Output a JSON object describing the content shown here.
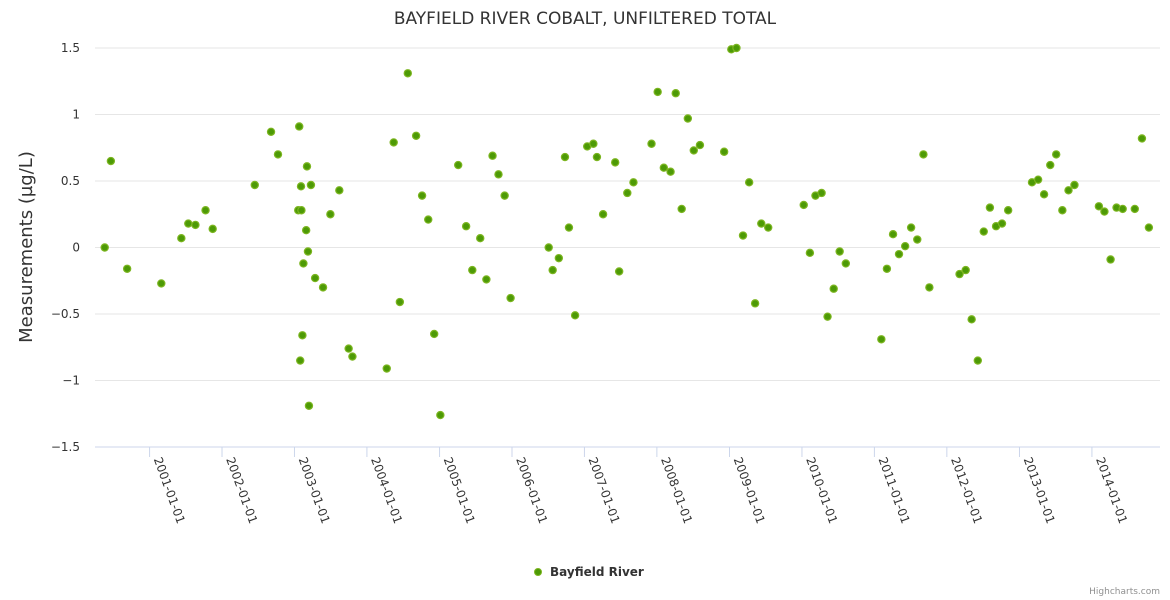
{
  "chart_data": {
    "type": "scatter",
    "title": "BAYFIELD RIVER COBALT, UNFILTERED TOTAL",
    "ylabel": "Measurements (µg/L)",
    "xlabel": "",
    "ylim": [
      -1.5,
      1.5
    ],
    "yticks": [
      1.5,
      1,
      0.5,
      0,
      -0.5,
      -1,
      -1.5
    ],
    "ytick_labels": [
      "1.5",
      "1",
      "0.5",
      "0",
      "−0.5",
      "−1",
      "−1.5"
    ],
    "xlim": [
      "2000-04-01",
      "2014-12-10"
    ],
    "xticks": [
      "2001-01-01",
      "2002-01-01",
      "2003-01-01",
      "2004-01-01",
      "2005-01-01",
      "2006-01-01",
      "2007-01-01",
      "2008-01-01",
      "2009-01-01",
      "2010-01-01",
      "2011-01-01",
      "2012-01-01",
      "2013-01-01",
      "2014-01-01"
    ],
    "grid": true,
    "legend_position": "bottom-center",
    "series": [
      {
        "name": "Bayfield River",
        "color": "#4d9a06",
        "edge_color": "#7cb520",
        "points": [
          [
            "2000-05-20",
            0.0
          ],
          [
            "2000-06-20",
            0.65
          ],
          [
            "2000-09-10",
            -0.16
          ],
          [
            "2001-03-01",
            -0.27
          ],
          [
            "2001-06-10",
            0.07
          ],
          [
            "2001-07-15",
            0.18
          ],
          [
            "2001-08-20",
            0.17
          ],
          [
            "2001-10-10",
            0.28
          ],
          [
            "2001-11-15",
            0.14
          ],
          [
            "2002-06-15",
            0.47
          ],
          [
            "2002-09-05",
            0.87
          ],
          [
            "2002-10-10",
            0.7
          ],
          [
            "2003-01-20",
            0.28
          ],
          [
            "2003-01-25",
            0.91
          ],
          [
            "2003-01-30",
            -0.85
          ],
          [
            "2003-02-03",
            0.46
          ],
          [
            "2003-02-05",
            0.28
          ],
          [
            "2003-02-10",
            -0.66
          ],
          [
            "2003-02-15",
            -0.12
          ],
          [
            "2003-03-01",
            0.13
          ],
          [
            "2003-03-05",
            0.61
          ],
          [
            "2003-03-10",
            -0.03
          ],
          [
            "2003-03-15",
            -1.19
          ],
          [
            "2003-03-25",
            0.47
          ],
          [
            "2003-04-15",
            -0.23
          ],
          [
            "2003-05-25",
            -0.3
          ],
          [
            "2003-07-01",
            0.25
          ],
          [
            "2003-08-15",
            0.43
          ],
          [
            "2003-10-01",
            -0.76
          ],
          [
            "2003-10-20",
            -0.82
          ],
          [
            "2004-04-10",
            -0.91
          ],
          [
            "2004-05-15",
            0.79
          ],
          [
            "2004-06-15",
            -0.41
          ],
          [
            "2004-07-25",
            1.31
          ],
          [
            "2004-09-05",
            0.84
          ],
          [
            "2004-10-05",
            0.39
          ],
          [
            "2004-11-05",
            0.21
          ],
          [
            "2004-12-05",
            -0.65
          ],
          [
            "2005-01-05",
            -1.26
          ],
          [
            "2005-04-05",
            0.62
          ],
          [
            "2005-05-15",
            0.16
          ],
          [
            "2005-06-15",
            -0.17
          ],
          [
            "2005-07-25",
            0.07
          ],
          [
            "2005-08-25",
            -0.24
          ],
          [
            "2005-09-25",
            0.69
          ],
          [
            "2005-10-25",
            0.55
          ],
          [
            "2005-11-25",
            0.39
          ],
          [
            "2005-12-25",
            -0.38
          ],
          [
            "2006-07-05",
            0.0
          ],
          [
            "2006-07-25",
            -0.17
          ],
          [
            "2006-08-25",
            -0.08
          ],
          [
            "2006-09-25",
            0.68
          ],
          [
            "2006-10-15",
            0.15
          ],
          [
            "2006-11-15",
            -0.51
          ],
          [
            "2007-01-15",
            0.76
          ],
          [
            "2007-02-15",
            0.78
          ],
          [
            "2007-03-05",
            0.68
          ],
          [
            "2007-04-05",
            0.25
          ],
          [
            "2007-06-05",
            0.64
          ],
          [
            "2007-06-25",
            -0.18
          ],
          [
            "2007-08-05",
            0.41
          ],
          [
            "2007-09-05",
            0.49
          ],
          [
            "2007-12-05",
            0.78
          ],
          [
            "2008-01-05",
            1.17
          ],
          [
            "2008-02-05",
            0.6
          ],
          [
            "2008-03-10",
            0.57
          ],
          [
            "2008-04-05",
            1.16
          ],
          [
            "2008-05-05",
            0.29
          ],
          [
            "2008-06-05",
            0.97
          ],
          [
            "2008-07-05",
            0.73
          ],
          [
            "2008-08-05",
            0.77
          ],
          [
            "2008-12-05",
            0.72
          ],
          [
            "2009-01-10",
            1.49
          ],
          [
            "2009-02-05",
            1.5
          ],
          [
            "2009-03-10",
            0.09
          ],
          [
            "2009-04-10",
            0.49
          ],
          [
            "2009-05-10",
            -0.42
          ],
          [
            "2009-06-10",
            0.18
          ],
          [
            "2009-07-15",
            0.15
          ],
          [
            "2010-01-10",
            0.32
          ],
          [
            "2010-02-10",
            -0.04
          ],
          [
            "2010-03-10",
            0.39
          ],
          [
            "2010-04-10",
            0.41
          ],
          [
            "2010-05-10",
            -0.52
          ],
          [
            "2010-06-10",
            -0.31
          ],
          [
            "2010-07-10",
            -0.03
          ],
          [
            "2010-08-10",
            -0.12
          ],
          [
            "2011-02-05",
            -0.69
          ],
          [
            "2011-03-05",
            -0.16
          ],
          [
            "2011-04-05",
            0.1
          ],
          [
            "2011-05-05",
            -0.05
          ],
          [
            "2011-06-05",
            0.01
          ],
          [
            "2011-07-05",
            0.15
          ],
          [
            "2011-08-05",
            0.06
          ],
          [
            "2011-09-05",
            0.7
          ],
          [
            "2011-10-05",
            -0.3
          ],
          [
            "2012-03-05",
            -0.2
          ],
          [
            "2012-04-05",
            -0.17
          ],
          [
            "2012-05-05",
            -0.54
          ],
          [
            "2012-06-05",
            -0.85
          ],
          [
            "2012-07-05",
            0.12
          ],
          [
            "2012-08-05",
            0.3
          ],
          [
            "2012-09-05",
            0.16
          ],
          [
            "2012-10-05",
            0.18
          ],
          [
            "2012-11-05",
            0.28
          ],
          [
            "2013-03-05",
            0.49
          ],
          [
            "2013-04-05",
            0.51
          ],
          [
            "2013-05-05",
            0.4
          ],
          [
            "2013-06-05",
            0.62
          ],
          [
            "2013-07-05",
            0.7
          ],
          [
            "2013-08-05",
            0.28
          ],
          [
            "2013-09-05",
            0.43
          ],
          [
            "2013-10-05",
            0.47
          ],
          [
            "2014-02-05",
            0.31
          ],
          [
            "2014-03-05",
            0.27
          ],
          [
            "2014-04-05",
            -0.09
          ],
          [
            "2014-05-05",
            0.3
          ],
          [
            "2014-06-05",
            0.29
          ],
          [
            "2014-08-05",
            0.29
          ],
          [
            "2014-09-10",
            0.82
          ],
          [
            "2014-10-15",
            0.15
          ]
        ]
      }
    ]
  },
  "credits": "Highcharts.com"
}
